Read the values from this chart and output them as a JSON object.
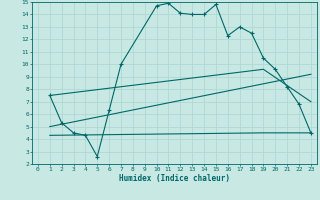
{
  "xlabel": "Humidex (Indice chaleur)",
  "xlim": [
    -0.5,
    23.5
  ],
  "ylim": [
    2,
    15
  ],
  "xticks": [
    0,
    1,
    2,
    3,
    4,
    5,
    6,
    7,
    8,
    9,
    10,
    11,
    12,
    13,
    14,
    15,
    16,
    17,
    18,
    19,
    20,
    21,
    22,
    23
  ],
  "yticks": [
    2,
    3,
    4,
    5,
    6,
    7,
    8,
    9,
    10,
    11,
    12,
    13,
    14,
    15
  ],
  "background_color": "#c8e8e4",
  "grid_color": "#b0d8d4",
  "line_color": "#006868",
  "line1_x": [
    1,
    2,
    3,
    4,
    5,
    6,
    7,
    10,
    11,
    12,
    13,
    14,
    15,
    16,
    17,
    18,
    19,
    20,
    21,
    22,
    23
  ],
  "line1_y": [
    7.5,
    5.3,
    4.5,
    4.3,
    2.6,
    6.3,
    10.0,
    14.7,
    14.9,
    14.1,
    14.0,
    14.0,
    14.8,
    12.3,
    13.0,
    12.5,
    10.5,
    9.6,
    8.2,
    6.8,
    4.5
  ],
  "line2_x": [
    1,
    19,
    23
  ],
  "line2_y": [
    7.5,
    9.6,
    7.0
  ],
  "line3_x": [
    1,
    23
  ],
  "line3_y": [
    5.0,
    9.2
  ],
  "line4_x": [
    1,
    10,
    19,
    23
  ],
  "line4_y": [
    4.3,
    4.4,
    4.5,
    4.5
  ],
  "figsize": [
    3.2,
    2.0
  ],
  "dpi": 100
}
